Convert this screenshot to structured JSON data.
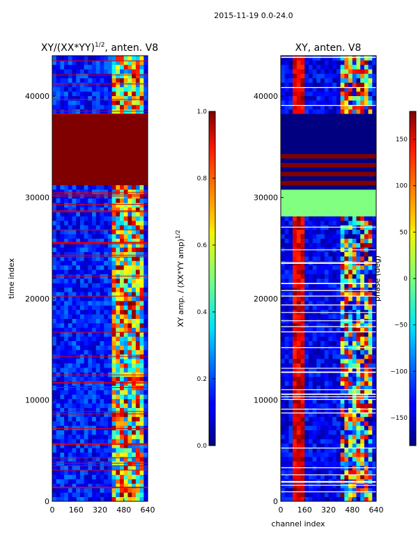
{
  "figure_title": "2015-11-19 0.0-24.0",
  "chart_data": [
    {
      "type": "heatmap",
      "title_text": "XY/(XX*YY)",
      "title_exponent": "1/2",
      "title_suffix": ", anten. V8",
      "xlabel": "",
      "ylabel": "time index",
      "xlim": [
        0,
        640
      ],
      "ylim": [
        0,
        44000
      ],
      "xticks": [
        0,
        160,
        320,
        480,
        640
      ],
      "yticks": [
        0,
        10000,
        20000,
        30000,
        40000
      ],
      "colormap": "jet",
      "colorbar": {
        "label_text": "XY amp. / (XX*YY amp)",
        "label_exponent": "1/2",
        "range": [
          0.0,
          1.0
        ],
        "ticks": [
          "0.0",
          "0.2",
          "0.4",
          "0.6",
          "0.8",
          "1.0"
        ]
      },
      "saturated_block": {
        "t_range": [
          31200,
          38200
        ],
        "value": 1.0
      },
      "high_channel_band": {
        "x_range": [
          400,
          620
        ],
        "value_range": [
          0.2,
          1.0
        ]
      },
      "background_value_range": [
        0.05,
        0.25
      ]
    },
    {
      "type": "heatmap",
      "title_text": "XY, anten. V8",
      "xlabel": "channel index",
      "ylabel": "phase (deg)",
      "xlim": [
        0,
        640
      ],
      "ylim": [
        0,
        44000
      ],
      "xticks": [
        0,
        160,
        320,
        480,
        640
      ],
      "yticks": [
        0,
        10000,
        20000,
        30000,
        40000
      ],
      "colormap": "jet",
      "colorbar": {
        "label_text": "phase (deg)",
        "range": [
          -180,
          180
        ],
        "ticks": [
          "−150",
          "−100",
          "−50",
          "0",
          "50",
          "100",
          "150"
        ]
      },
      "saturated_block_low": {
        "t_range": [
          34300,
          38200
        ],
        "value": -180
      },
      "striped_block": {
        "t_range": [
          31000,
          34300
        ],
        "values": [
          -180,
          180
        ]
      },
      "flat_block": {
        "t_range": [
          28000,
          31000
        ],
        "value": 0
      },
      "hot_channels": [
        110,
        150
      ],
      "high_channel_band": {
        "x_range": [
          400,
          620
        ]
      }
    }
  ]
}
